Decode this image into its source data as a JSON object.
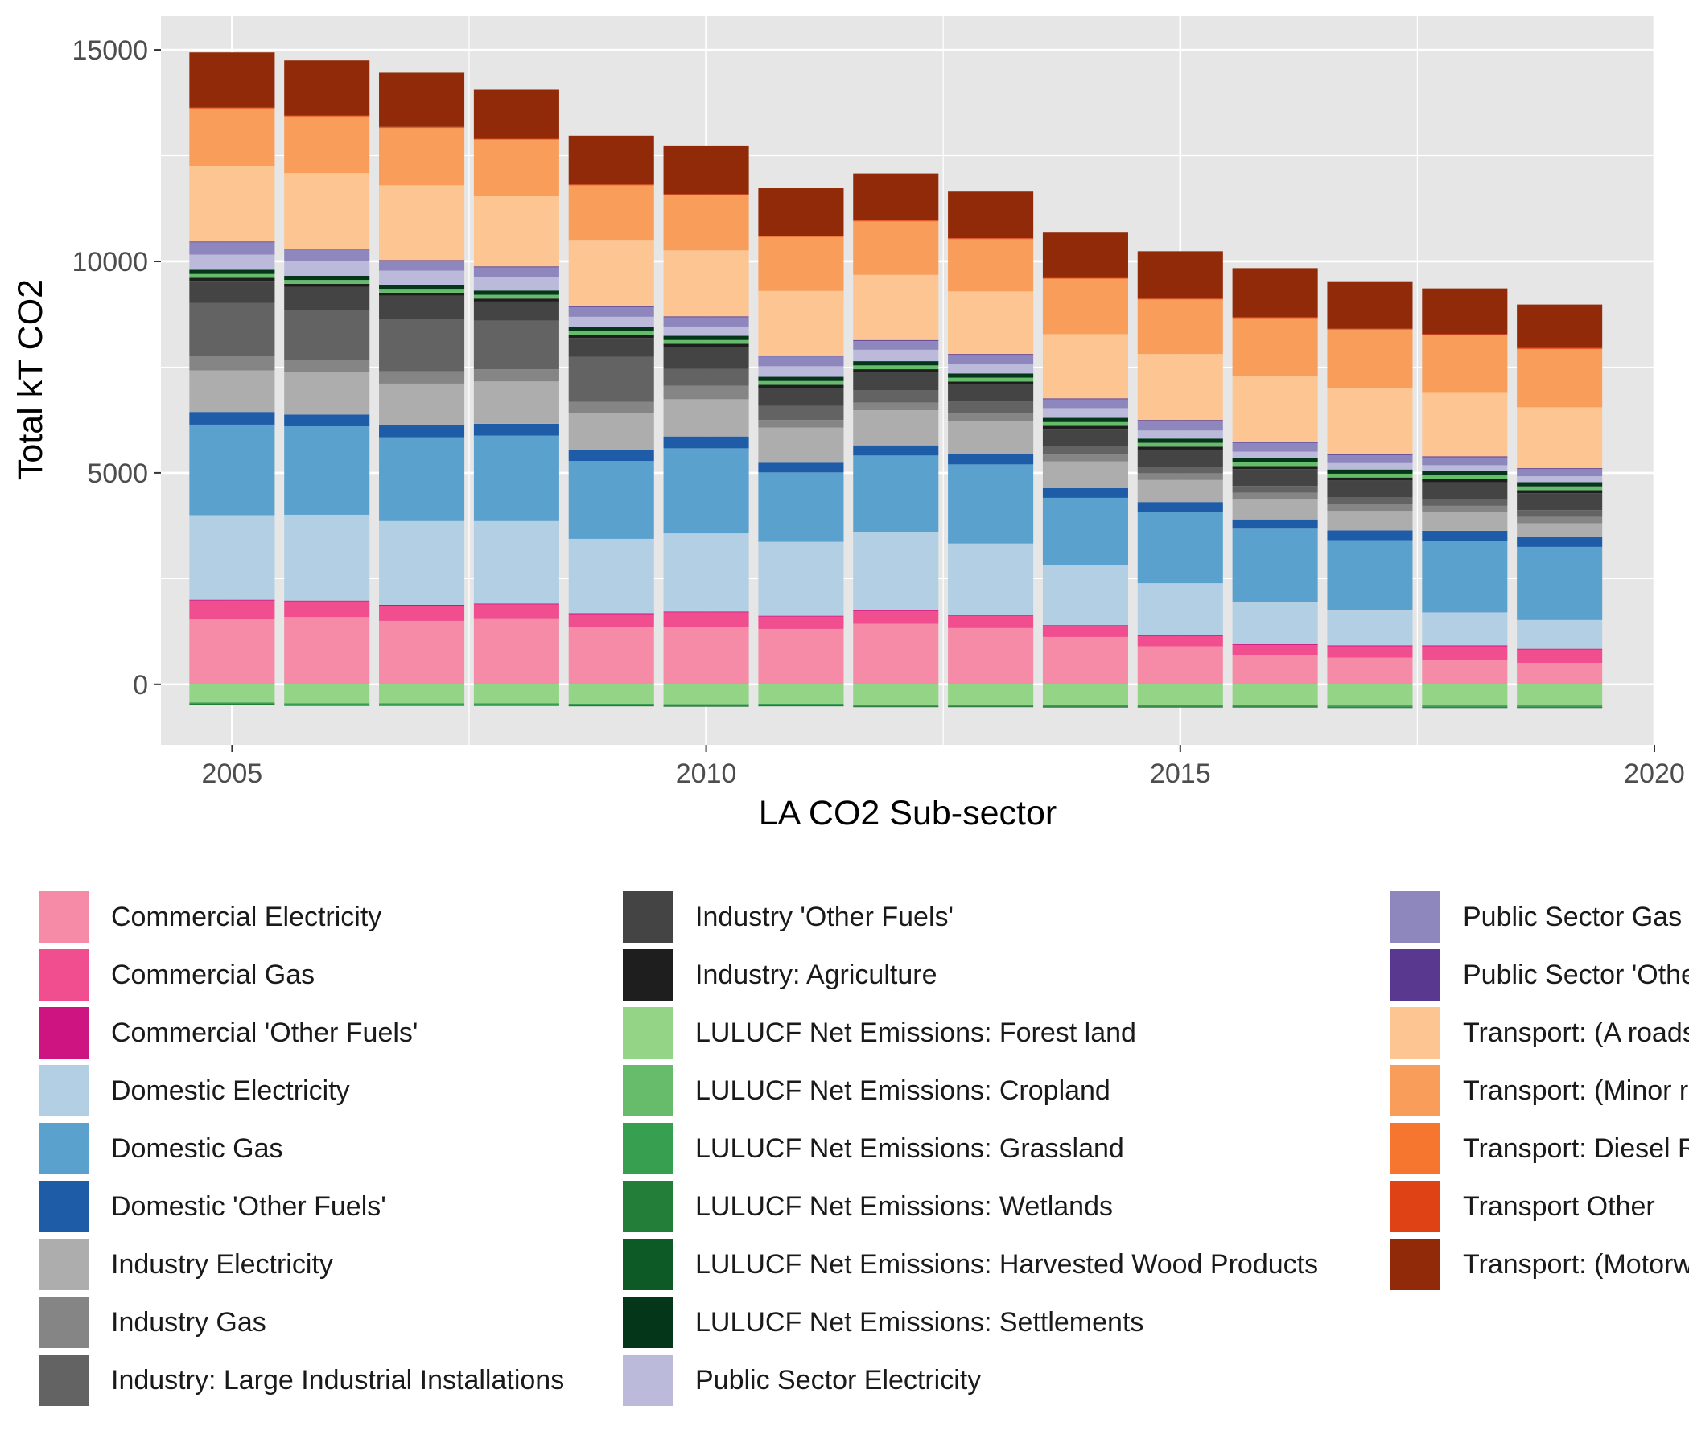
{
  "chart_data": {
    "type": "bar",
    "stacked": true,
    "title": "",
    "xlabel": "LA CO2 Sub-sector",
    "ylabel": "Total kT CO2",
    "xlim": [
      2004.25,
      2020
    ],
    "ylim": [
      -1430,
      15800
    ],
    "x_ticks": [
      2005,
      2010,
      2015,
      2020
    ],
    "y_ticks": [
      0,
      5000,
      10000,
      15000
    ],
    "grid": true,
    "legend_position": "bottom",
    "years": [
      2005,
      2006,
      2007,
      2008,
      2009,
      2010,
      2011,
      2012,
      2013,
      2014,
      2015,
      2016,
      2017,
      2018,
      2019
    ],
    "series": [
      {
        "name": "Commercial Electricity",
        "color": "#F58BA7",
        "values": [
          1540,
          1590,
          1500,
          1560,
          1360,
          1360,
          1310,
          1430,
          1330,
          1120,
          900,
          700,
          630,
          580,
          510
        ]
      },
      {
        "name": "Commercial Gas",
        "color": "#F14E8F",
        "values": [
          440,
          370,
          360,
          330,
          300,
          340,
          290,
          300,
          290,
          260,
          240,
          230,
          270,
          320,
          310
        ]
      },
      {
        "name": "Commercial 'Other Fuels'",
        "color": "#CD1480",
        "values": [
          20,
          20,
          20,
          20,
          20,
          20,
          20,
          20,
          20,
          20,
          20,
          20,
          20,
          20,
          20
        ]
      },
      {
        "name": "Domestic Electricity",
        "color": "#B2CFE3",
        "values": [
          2000,
          2030,
          1980,
          1950,
          1760,
          1850,
          1750,
          1850,
          1690,
          1420,
          1230,
          1000,
          840,
          780,
          680
        ]
      },
      {
        "name": "Domestic Gas",
        "color": "#5BA1CE",
        "values": [
          2140,
          2090,
          1980,
          2020,
          1840,
          2010,
          1640,
          1810,
          1870,
          1590,
          1690,
          1730,
          1650,
          1700,
          1730
        ]
      },
      {
        "name": "Domestic 'Other Fuels'",
        "color": "#1F5CA8",
        "values": [
          300,
          280,
          280,
          280,
          260,
          280,
          230,
          240,
          240,
          230,
          230,
          220,
          230,
          230,
          230
        ]
      },
      {
        "name": "Industry Electricity",
        "color": "#ADADAD",
        "values": [
          980,
          1010,
          990,
          1000,
          880,
          880,
          830,
          830,
          790,
          630,
          520,
          470,
          460,
          440,
          330
        ]
      },
      {
        "name": "Industry Gas",
        "color": "#858585",
        "values": [
          340,
          280,
          290,
          290,
          260,
          320,
          180,
          180,
          170,
          160,
          160,
          160,
          160,
          150,
          150
        ]
      },
      {
        "name": "Industry: Large Industrial Installations",
        "color": "#636363",
        "values": [
          1260,
          1180,
          1240,
          1150,
          1060,
          400,
          330,
          290,
          290,
          210,
          160,
          160,
          160,
          160,
          160
        ]
      },
      {
        "name": "Industry 'Other Fuels'",
        "color": "#444444",
        "values": [
          520,
          550,
          550,
          450,
          450,
          520,
          430,
          430,
          400,
          400,
          400,
          400,
          400,
          400,
          400
        ]
      },
      {
        "name": "Industry: Agriculture",
        "color": "#1E1E1E",
        "values": [
          70,
          70,
          70,
          70,
          70,
          70,
          70,
          70,
          70,
          70,
          70,
          70,
          70,
          70,
          70
        ]
      },
      {
        "name": "LULUCF Net Emissions: Forest land",
        "color": "#93D487",
        "values": [
          -430,
          -450,
          -450,
          -450,
          -460,
          -470,
          -460,
          -480,
          -480,
          -490,
          -490,
          -490,
          -500,
          -500,
          -500
        ]
      },
      {
        "name": "LULUCF Net Emissions: Cropland",
        "color": "#66BC6B",
        "values": [
          90,
          90,
          90,
          90,
          90,
          90,
          90,
          90,
          90,
          90,
          90,
          90,
          90,
          90,
          90
        ]
      },
      {
        "name": "LULUCF Net Emissions: Grassland",
        "color": "#36A050",
        "values": [
          -30,
          -30,
          -30,
          -30,
          -30,
          -30,
          -30,
          -30,
          -30,
          -30,
          -30,
          -30,
          -30,
          -30,
          -30
        ]
      },
      {
        "name": "LULUCF Net Emissions: Wetlands",
        "color": "#237E3A",
        "values": [
          -20,
          -20,
          -20,
          -20,
          -20,
          -20,
          -20,
          -20,
          -20,
          -20,
          -20,
          -20,
          -20,
          -20,
          -20
        ]
      },
      {
        "name": "LULUCF Net Emissions: Harvested Wood Products",
        "color": "#0D5A26",
        "values": [
          -10,
          -10,
          -10,
          -10,
          -10,
          -10,
          -10,
          -10,
          -10,
          -10,
          -10,
          -10,
          -10,
          -10,
          -10
        ]
      },
      {
        "name": "LULUCF Net Emissions: Settlements",
        "color": "#04361A",
        "values": [
          100,
          100,
          100,
          100,
          100,
          100,
          100,
          100,
          100,
          100,
          100,
          100,
          100,
          100,
          100
        ]
      },
      {
        "name": "Public Sector Electricity",
        "color": "#BCBADB",
        "values": [
          360,
          350,
          330,
          320,
          240,
          220,
          250,
          270,
          230,
          230,
          190,
          150,
          150,
          140,
          140
        ]
      },
      {
        "name": "Public Sector Gas",
        "color": "#8E87BD",
        "values": [
          290,
          270,
          230,
          230,
          230,
          220,
          230,
          210,
          210,
          210,
          230,
          210,
          190,
          190,
          170
        ]
      },
      {
        "name": "Public Sector 'Other Fuels'",
        "color": "#58398F",
        "values": [
          20,
          20,
          20,
          20,
          20,
          20,
          20,
          20,
          20,
          20,
          20,
          20,
          20,
          20,
          20
        ]
      },
      {
        "name": "Transport: (A roads)",
        "color": "#FCC591",
        "values": [
          1790,
          1790,
          1770,
          1660,
          1550,
          1560,
          1530,
          1540,
          1480,
          1520,
          1560,
          1560,
          1570,
          1520,
          1440
        ]
      },
      {
        "name": "Transport: (Minor roads)",
        "color": "#F99D5A",
        "values": [
          1350,
          1330,
          1350,
          1330,
          1300,
          1300,
          1270,
          1260,
          1230,
          1300,
          1280,
          1360,
          1370,
          1340,
          1370
        ]
      },
      {
        "name": "Transport: Diesel Railways",
        "color": "#F7762F",
        "values": [
          15,
          15,
          15,
          15,
          15,
          15,
          15,
          15,
          15,
          15,
          15,
          15,
          15,
          15,
          15
        ]
      },
      {
        "name": "Transport Other",
        "color": "#DE4215",
        "values": [
          15,
          15,
          15,
          15,
          15,
          15,
          15,
          15,
          15,
          15,
          15,
          15,
          15,
          15,
          15
        ]
      },
      {
        "name": "Transport: (Motorways)",
        "color": "#912A08",
        "values": [
          1300,
          1300,
          1280,
          1160,
          1150,
          1150,
          1130,
          1110,
          1100,
          1070,
          1120,
          1160,
          1120,
          1080,
          1030
        ]
      }
    ]
  }
}
